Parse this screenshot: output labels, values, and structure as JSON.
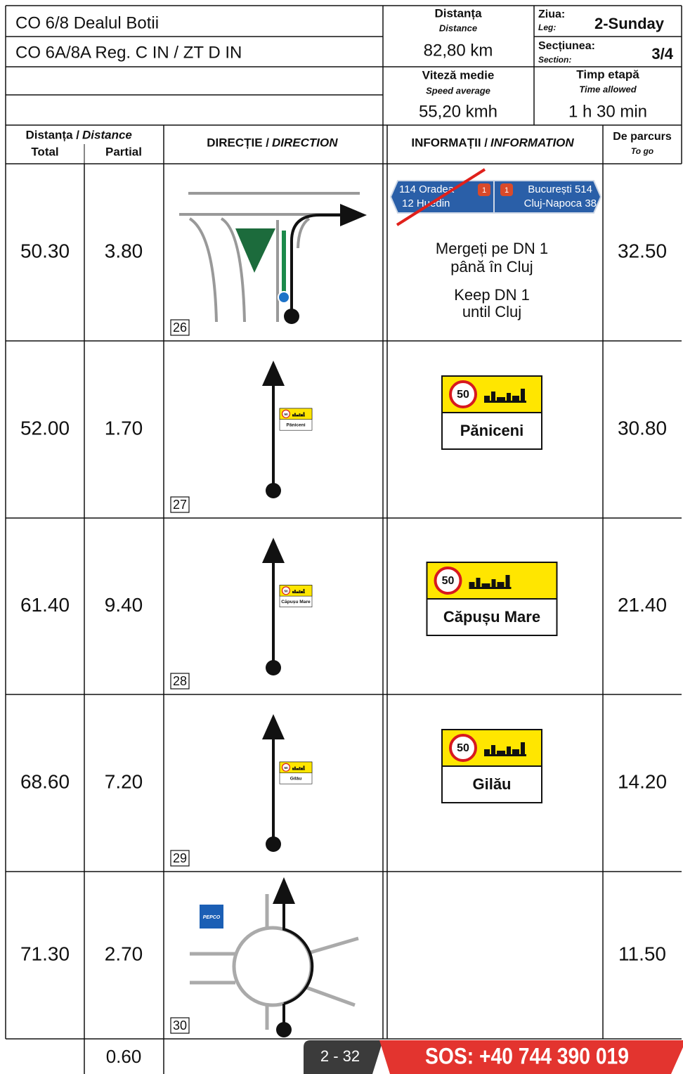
{
  "header": {
    "title": "CO 6/8 Dealul Botii",
    "subtitle": "CO 6A/8A Reg. C IN / ZT D IN",
    "distance": {
      "label": "Distanța",
      "label_en": "Distance",
      "value": "82,80 km"
    },
    "leg": {
      "label": "Ziua:",
      "label_en": "Leg:",
      "value": "2-Sunday"
    },
    "section": {
      "label": "Secțiunea:",
      "label_en": "Section:",
      "value": "3/4"
    },
    "speed": {
      "label": "Viteză medie",
      "label_en": "Speed average",
      "value": "55,20 kmh"
    },
    "time": {
      "label": "Timp etapă",
      "label_en": "Time allowed",
      "value": "1 h 30 min"
    }
  },
  "columns": {
    "distance": "Distanța /",
    "distance_en": "Distance",
    "total": "Total",
    "partial": "Partial",
    "direction": "DIRECȚIE /",
    "direction_en": "DIRECTION",
    "information": "INFORMAȚII /",
    "information_en": "INFORMATION",
    "to_go": "De parcurs",
    "to_go_en": "To go"
  },
  "rows": [
    {
      "total": "50.30",
      "partial": "3.80",
      "to_go": "32.50",
      "number": "26",
      "drawing": "junction",
      "info": {
        "direction_sign": {
          "left_top": "114 Oradea",
          "left_bottom": "12 Huedin",
          "shield": "1",
          "right_top": "București 514",
          "right_bottom": "Cluj-Napoca 38"
        },
        "lines": [
          "Mergeți pe DN 1",
          "până în Cluj",
          "Keep DN 1",
          "until Cluj"
        ]
      }
    },
    {
      "total": "52.00",
      "partial": "1.70",
      "to_go": "30.80",
      "number": "27",
      "drawing": "straight",
      "info": {
        "sign": {
          "speed": "50",
          "place": "Păniceni"
        }
      }
    },
    {
      "total": "61.40",
      "partial": "9.40",
      "to_go": "21.40",
      "number": "28",
      "drawing": "straight",
      "info": {
        "sign": {
          "speed": "50",
          "place": "Căpușu Mare"
        }
      }
    },
    {
      "total": "68.60",
      "partial": "7.20",
      "to_go": "14.20",
      "number": "29",
      "drawing": "straight",
      "info": {
        "sign": {
          "speed": "50",
          "place": "Gilău"
        }
      }
    },
    {
      "total": "71.30",
      "partial": "2.70",
      "to_go": "11.50",
      "number": "30",
      "drawing": "roundabout",
      "logo": "PEPCO"
    }
  ],
  "final_partial": "0.60",
  "footer": {
    "page": "2 - 32",
    "sos": "SOS: +40 744 390 019"
  }
}
